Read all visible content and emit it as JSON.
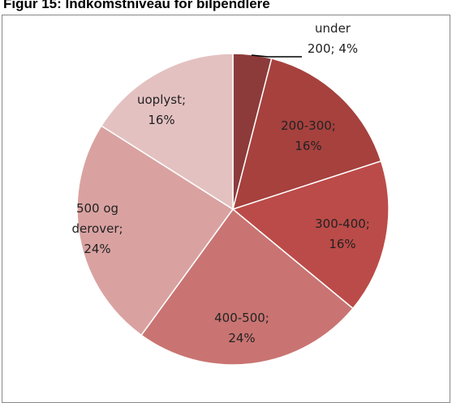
{
  "chart_data": {
    "type": "pie",
    "title": "Figur 15: Indkomstniveau for bilpendlere",
    "categories": [
      "under 200",
      "200-300",
      "300-400",
      "400-500",
      "500 og derover",
      "uoplyst"
    ],
    "values": [
      4,
      16,
      16,
      24,
      24,
      16
    ],
    "value_labels": [
      "under\n200; 4%",
      "200-300;\n16%",
      "300-400;\n16%",
      "400-500;\n24%",
      "500 og\nderover;\n24%",
      "uoplyst;\n16%"
    ],
    "colors": [
      "#8c3b3a",
      "#a6413e",
      "#bb4b48",
      "#c97472",
      "#d9a2a1",
      "#e4c1c1"
    ]
  }
}
